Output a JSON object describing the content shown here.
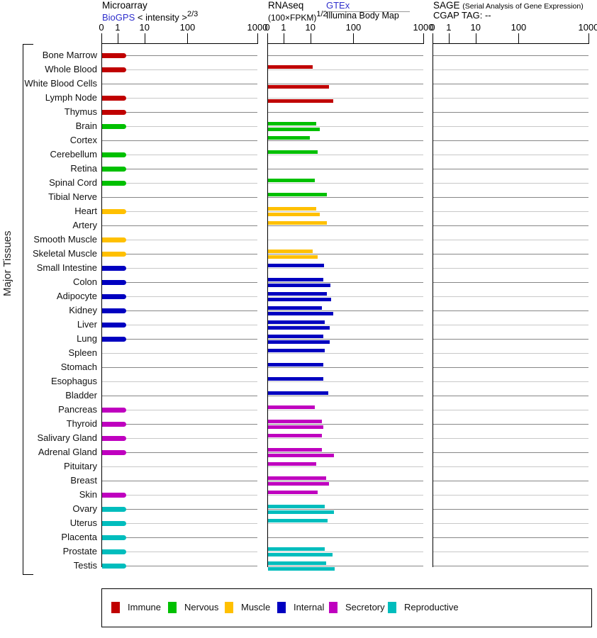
{
  "side_label": "Major Tissues",
  "panels": {
    "microarray": {
      "title": "Microarray",
      "source_link": "BioGPS",
      "scale_label": "< intensity >",
      "scale_exponent": "2/3"
    },
    "rnaseq": {
      "title": "RNAseq",
      "scale_label": "(100×FPKM)",
      "scale_exponent": "1/2",
      "source_top": "GTEx",
      "source_bottom": "Illumina Body Map"
    },
    "sage": {
      "title": "SAGE",
      "subtitle": "(Serial Analysis of Gene Expression)",
      "tag_line": "CGAP TAG: --"
    }
  },
  "group_colors": {
    "immune": "#c00000",
    "nervous": "#00c000",
    "muscle": "#ffc000",
    "internal": "#0000c0",
    "secretory": "#bf00bf",
    "reproductive": "#00bdbd"
  },
  "legend": {
    "items": [
      {
        "label": "Immune",
        "group": "immune"
      },
      {
        "label": "Nervous",
        "group": "nervous"
      },
      {
        "label": "Muscle",
        "group": "muscle"
      },
      {
        "label": "Internal",
        "group": "internal"
      },
      {
        "label": "Secretory",
        "group": "secretory"
      },
      {
        "label": "Reproductive",
        "group": "reproductive"
      }
    ]
  },
  "chart_data": {
    "type": "bar",
    "orientation": "horizontal",
    "x_scale": {
      "tick_labels": [
        "0",
        "1",
        "10",
        "100",
        "1000"
      ],
      "tick_values": [
        0,
        1,
        10,
        100,
        1000
      ],
      "tick_positions_pct": [
        0,
        10.4,
        27.6,
        55.2,
        100
      ],
      "note": "nonlinear power scale (intensity^2/3 for microarray, sqrt(100*FPKM) for RNAseq)"
    },
    "series_names": [
      "Microarray BioGPS",
      "RNAseq GTEx",
      "RNAseq Illumina Body Map",
      "SAGE CGAP"
    ],
    "sage_all_values": null,
    "tissues": [
      {
        "name": "Bone Marrow",
        "group": "immune",
        "microarray": 2,
        "rnaseq_gtex": null,
        "rnaseq_illumina": null,
        "sage": null
      },
      {
        "name": "Whole Blood",
        "group": "immune",
        "microarray": 2,
        "rnaseq_gtex": 11,
        "rnaseq_illumina": null,
        "sage": null
      },
      {
        "name": "White Blood Cells",
        "group": "immune",
        "microarray": null,
        "rnaseq_gtex": null,
        "rnaseq_illumina": 26,
        "sage": null
      },
      {
        "name": "Lymph Node",
        "group": "immune",
        "microarray": 2,
        "rnaseq_gtex": null,
        "rnaseq_illumina": 33,
        "sage": null
      },
      {
        "name": "Thymus",
        "group": "immune",
        "microarray": 2,
        "rnaseq_gtex": null,
        "rnaseq_illumina": null,
        "sage": null
      },
      {
        "name": "Brain",
        "group": "nervous",
        "microarray": 2,
        "rnaseq_gtex": 13,
        "rnaseq_illumina": 16,
        "sage": null
      },
      {
        "name": "Cortex",
        "group": "nervous",
        "microarray": null,
        "rnaseq_gtex": 9,
        "rnaseq_illumina": null,
        "sage": null
      },
      {
        "name": "Cerebellum",
        "group": "nervous",
        "microarray": 2,
        "rnaseq_gtex": 14,
        "rnaseq_illumina": null,
        "sage": null
      },
      {
        "name": "Retina",
        "group": "nervous",
        "microarray": 2,
        "rnaseq_gtex": null,
        "rnaseq_illumina": null,
        "sage": null
      },
      {
        "name": "Spinal Cord",
        "group": "nervous",
        "microarray": 2,
        "rnaseq_gtex": 12,
        "rnaseq_illumina": null,
        "sage": null
      },
      {
        "name": "Tibial Nerve",
        "group": "nervous",
        "microarray": null,
        "rnaseq_gtex": 23,
        "rnaseq_illumina": null,
        "sage": null
      },
      {
        "name": "Heart",
        "group": "muscle",
        "microarray": 2,
        "rnaseq_gtex": 13,
        "rnaseq_illumina": 16,
        "sage": null
      },
      {
        "name": "Artery",
        "group": "muscle",
        "microarray": null,
        "rnaseq_gtex": 23,
        "rnaseq_illumina": null,
        "sage": null
      },
      {
        "name": "Smooth Muscle",
        "group": "muscle",
        "microarray": 2,
        "rnaseq_gtex": null,
        "rnaseq_illumina": null,
        "sage": null
      },
      {
        "name": "Skeletal Muscle",
        "group": "muscle",
        "microarray": 2,
        "rnaseq_gtex": 11,
        "rnaseq_illumina": 14,
        "sage": null
      },
      {
        "name": "Small Intestine",
        "group": "internal",
        "microarray": 2,
        "rnaseq_gtex": 20,
        "rnaseq_illumina": null,
        "sage": null
      },
      {
        "name": "Colon",
        "group": "internal",
        "microarray": 2,
        "rnaseq_gtex": 19,
        "rnaseq_illumina": 28,
        "sage": null
      },
      {
        "name": "Adipocyte",
        "group": "internal",
        "microarray": 2,
        "rnaseq_gtex": 23,
        "rnaseq_illumina": 29,
        "sage": null
      },
      {
        "name": "Kidney",
        "group": "internal",
        "microarray": 2,
        "rnaseq_gtex": 18,
        "rnaseq_illumina": 33,
        "sage": null
      },
      {
        "name": "Liver",
        "group": "internal",
        "microarray": 2,
        "rnaseq_gtex": 21,
        "rnaseq_illumina": 27,
        "sage": null
      },
      {
        "name": "Lung",
        "group": "internal",
        "microarray": 2,
        "rnaseq_gtex": 19,
        "rnaseq_illumina": 27,
        "sage": null
      },
      {
        "name": "Spleen",
        "group": "internal",
        "microarray": null,
        "rnaseq_gtex": 21,
        "rnaseq_illumina": null,
        "sage": null
      },
      {
        "name": "Stomach",
        "group": "internal",
        "microarray": null,
        "rnaseq_gtex": 19,
        "rnaseq_illumina": null,
        "sage": null
      },
      {
        "name": "Esophagus",
        "group": "internal",
        "microarray": null,
        "rnaseq_gtex": 19,
        "rnaseq_illumina": null,
        "sage": null
      },
      {
        "name": "Bladder",
        "group": "internal",
        "microarray": null,
        "rnaseq_gtex": 25,
        "rnaseq_illumina": null,
        "sage": null
      },
      {
        "name": "Pancreas",
        "group": "secretory",
        "microarray": 2,
        "rnaseq_gtex": 12,
        "rnaseq_illumina": null,
        "sage": null
      },
      {
        "name": "Thyroid",
        "group": "secretory",
        "microarray": 2,
        "rnaseq_gtex": 18,
        "rnaseq_illumina": 19,
        "sage": null
      },
      {
        "name": "Salivary Gland",
        "group": "secretory",
        "microarray": 2,
        "rnaseq_gtex": 18,
        "rnaseq_illumina": null,
        "sage": null
      },
      {
        "name": "Adrenal Gland",
        "group": "secretory",
        "microarray": 2,
        "rnaseq_gtex": 18,
        "rnaseq_illumina": 34,
        "sage": null
      },
      {
        "name": "Pituitary",
        "group": "secretory",
        "microarray": null,
        "rnaseq_gtex": 13,
        "rnaseq_illumina": null,
        "sage": null
      },
      {
        "name": "Breast",
        "group": "secretory",
        "microarray": null,
        "rnaseq_gtex": 22,
        "rnaseq_illumina": 26,
        "sage": null
      },
      {
        "name": "Skin",
        "group": "secretory",
        "microarray": 2,
        "rnaseq_gtex": 14,
        "rnaseq_illumina": null,
        "sage": null
      },
      {
        "name": "Ovary",
        "group": "reproductive",
        "microarray": 2,
        "rnaseq_gtex": 21,
        "rnaseq_illumina": 34,
        "sage": null
      },
      {
        "name": "Uterus",
        "group": "reproductive",
        "microarray": 2,
        "rnaseq_gtex": 24,
        "rnaseq_illumina": null,
        "sage": null
      },
      {
        "name": "Placenta",
        "group": "reproductive",
        "microarray": 2,
        "rnaseq_gtex": null,
        "rnaseq_illumina": null,
        "sage": null
      },
      {
        "name": "Prostate",
        "group": "reproductive",
        "microarray": 2,
        "rnaseq_gtex": 21,
        "rnaseq_illumina": 32,
        "sage": null
      },
      {
        "name": "Testis",
        "group": "reproductive",
        "microarray": 2,
        "rnaseq_gtex": 22,
        "rnaseq_illumina": 35,
        "sage": null
      }
    ]
  }
}
